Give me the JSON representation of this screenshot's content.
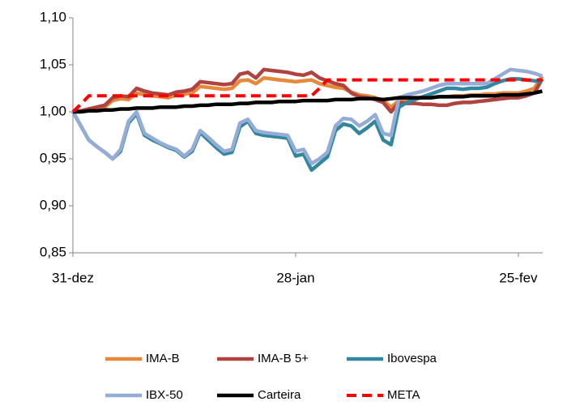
{
  "chart_data": {
    "type": "line",
    "categories": [
      "31-dez",
      null,
      null,
      null,
      null,
      null,
      null,
      null,
      null,
      null,
      null,
      null,
      null,
      null,
      null,
      null,
      null,
      null,
      null,
      null,
      null,
      null,
      null,
      null,
      null,
      null,
      null,
      null,
      "28-jan",
      null,
      null,
      null,
      null,
      null,
      null,
      null,
      null,
      null,
      null,
      null,
      null,
      null,
      null,
      null,
      null,
      null,
      null,
      null,
      null,
      null,
      null,
      null,
      null,
      null,
      null,
      null,
      "25-fev",
      null,
      null,
      null
    ],
    "series": [
      {
        "name": "IMA-B",
        "color": "#e6893d",
        "values": [
          1.0,
          1.001,
          1.002,
          1.004,
          1.005,
          1.012,
          1.014,
          1.013,
          1.02,
          1.018,
          1.017,
          1.016,
          1.015,
          1.018,
          1.019,
          1.02,
          1.027,
          1.026,
          1.025,
          1.024,
          1.025,
          1.033,
          1.034,
          1.03,
          1.036,
          1.035,
          1.034,
          1.033,
          1.032,
          1.033,
          1.034,
          1.03,
          1.028,
          1.026,
          1.025,
          1.021,
          1.018,
          1.017,
          1.015,
          1.012,
          1.005,
          1.012,
          1.013,
          1.014,
          1.015,
          1.015,
          1.016,
          1.016,
          1.017,
          1.017,
          1.018,
          1.018,
          1.019,
          1.019,
          1.02,
          1.02,
          1.02,
          1.022,
          1.025,
          1.038
        ]
      },
      {
        "name": "IMA-B 5+",
        "color": "#b0433f",
        "values": [
          1.0,
          1.001,
          1.003,
          1.005,
          1.007,
          1.015,
          1.017,
          1.016,
          1.025,
          1.022,
          1.02,
          1.019,
          1.018,
          1.021,
          1.022,
          1.024,
          1.032,
          1.031,
          1.03,
          1.029,
          1.03,
          1.04,
          1.042,
          1.036,
          1.045,
          1.044,
          1.043,
          1.042,
          1.04,
          1.039,
          1.042,
          1.036,
          1.033,
          1.03,
          1.028,
          1.02,
          1.016,
          1.015,
          1.013,
          1.01,
          1.0,
          1.01,
          1.009,
          1.009,
          1.008,
          1.008,
          1.007,
          1.007,
          1.009,
          1.01,
          1.01,
          1.011,
          1.012,
          1.013,
          1.014,
          1.015,
          1.015,
          1.017,
          1.02,
          1.035
        ]
      },
      {
        "name": "Ibovespa",
        "color": "#31879e",
        "values": [
          1.0,
          0.985,
          0.97,
          0.963,
          0.957,
          0.95,
          0.958,
          0.988,
          0.998,
          0.975,
          0.97,
          0.966,
          0.962,
          0.959,
          0.952,
          0.958,
          0.978,
          0.97,
          0.962,
          0.955,
          0.957,
          0.984,
          0.99,
          0.977,
          0.975,
          0.974,
          0.973,
          0.972,
          0.953,
          0.955,
          0.938,
          0.945,
          0.952,
          0.98,
          0.987,
          0.985,
          0.977,
          0.983,
          0.99,
          0.97,
          0.965,
          1.005,
          1.01,
          1.013,
          1.016,
          1.019,
          1.022,
          1.025,
          1.025,
          1.024,
          1.025,
          1.025,
          1.026,
          1.03,
          1.033,
          1.035,
          1.035,
          1.034,
          1.033,
          1.032
        ]
      },
      {
        "name": "IBX-50",
        "color": "#95acd6",
        "values": [
          1.0,
          0.985,
          0.97,
          0.963,
          0.957,
          0.95,
          0.96,
          0.99,
          1.0,
          0.977,
          0.972,
          0.967,
          0.963,
          0.96,
          0.953,
          0.96,
          0.98,
          0.973,
          0.965,
          0.958,
          0.96,
          0.988,
          0.992,
          0.98,
          0.978,
          0.977,
          0.976,
          0.975,
          0.958,
          0.96,
          0.945,
          0.95,
          0.957,
          0.985,
          0.993,
          0.992,
          0.985,
          0.99,
          0.997,
          0.977,
          0.975,
          1.015,
          1.018,
          1.02,
          1.022,
          1.025,
          1.028,
          1.03,
          1.03,
          1.03,
          1.03,
          1.03,
          1.03,
          1.035,
          1.04,
          1.045,
          1.044,
          1.043,
          1.041,
          1.038
        ]
      },
      {
        "name": "Carteira",
        "color": "#000000",
        "values": [
          1.0,
          1.0,
          1.001,
          1.001,
          1.002,
          1.002,
          1.003,
          1.003,
          1.004,
          1.004,
          1.004,
          1.005,
          1.005,
          1.005,
          1.006,
          1.006,
          1.007,
          1.007,
          1.008,
          1.008,
          1.008,
          1.009,
          1.009,
          1.01,
          1.01,
          1.01,
          1.011,
          1.011,
          1.011,
          1.012,
          1.012,
          1.012,
          1.012,
          1.013,
          1.013,
          1.013,
          1.014,
          1.014,
          1.014,
          1.013,
          1.014,
          1.015,
          1.015,
          1.015,
          1.015,
          1.015,
          1.016,
          1.016,
          1.016,
          1.016,
          1.017,
          1.017,
          1.017,
          1.017,
          1.018,
          1.018,
          1.018,
          1.019,
          1.02,
          1.022
        ]
      },
      {
        "name": "META",
        "color": "#ff0000",
        "dashed": true,
        "values": [
          1.0,
          1.008,
          1.017,
          1.017,
          1.017,
          1.017,
          1.017,
          1.017,
          1.017,
          1.017,
          1.017,
          1.017,
          1.017,
          1.017,
          1.017,
          1.017,
          1.017,
          1.017,
          1.017,
          1.017,
          1.017,
          1.017,
          1.017,
          1.017,
          1.017,
          1.017,
          1.017,
          1.017,
          1.017,
          1.017,
          1.017,
          1.025,
          1.034,
          1.034,
          1.034,
          1.034,
          1.034,
          1.034,
          1.034,
          1.034,
          1.034,
          1.034,
          1.034,
          1.034,
          1.034,
          1.034,
          1.034,
          1.034,
          1.034,
          1.034,
          1.034,
          1.034,
          1.034,
          1.034,
          1.034,
          1.034,
          1.034,
          1.034,
          1.034,
          1.034
        ]
      }
    ],
    "ylim": [
      0.85,
      1.1
    ],
    "yticks": [
      {
        "value": 0.85,
        "label": "0,85"
      },
      {
        "value": 0.9,
        "label": "0,90"
      },
      {
        "value": 0.95,
        "label": "0,95"
      },
      {
        "value": 1.0,
        "label": "1,00"
      },
      {
        "value": 1.05,
        "label": "1,05"
      },
      {
        "value": 1.1,
        "label": "1,10"
      }
    ],
    "grid": false,
    "legend": "bottom"
  }
}
